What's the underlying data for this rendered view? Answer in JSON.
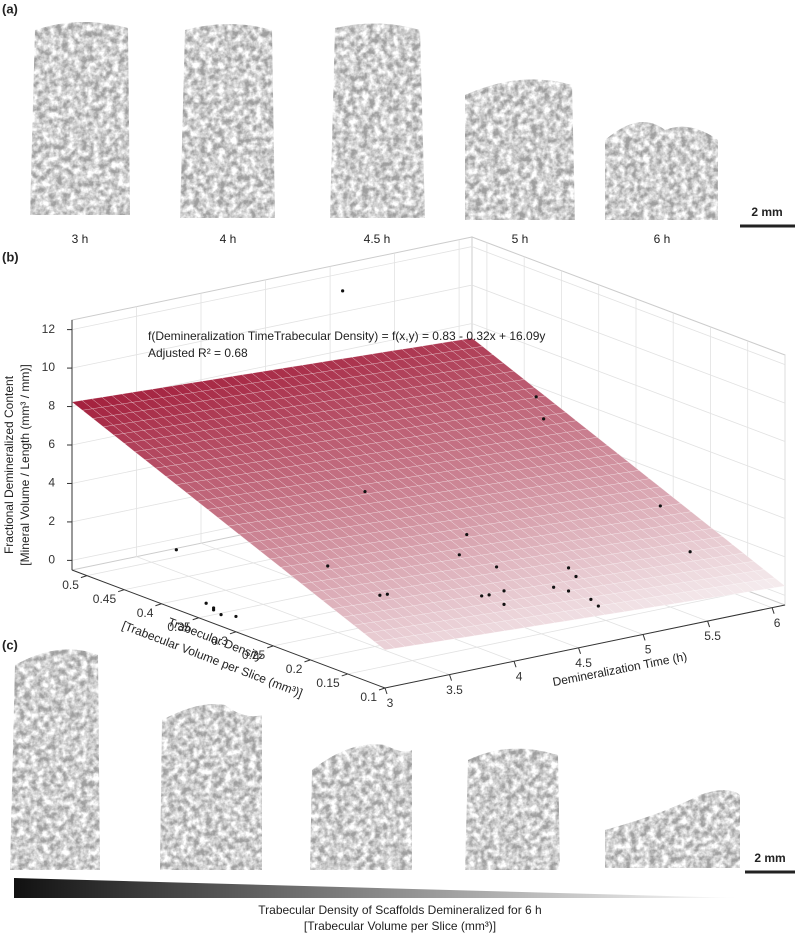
{
  "panel_a": {
    "label": "(a)",
    "captions": [
      "3 h",
      "4 h",
      "4.5 h",
      "5 h",
      "6 h"
    ],
    "scale_bar": "2 mm"
  },
  "chart_data": {
    "type": "surface3d",
    "label": "(b)",
    "annotation": [
      "f(Demineralization TimeTrabecular Density) = f(x,y) = 0.83 - 0.32x + 16.09y",
      "Adjusted R² = 0.68"
    ],
    "x_label": "Demineralization Time (h)",
    "y_label": [
      "Trabecular Density",
      "[Trabecular Volume per Slice (mm³)]"
    ],
    "z_label": [
      "Fractional Demineralized Content",
      "[Mineral Volume / Length (mm³ / mm)]"
    ],
    "xlim": [
      3,
      6.1
    ],
    "xticks": [
      3,
      3.5,
      4,
      4.5,
      5,
      5.5,
      6
    ],
    "ylim": [
      0.1,
      0.52
    ],
    "yticks": [
      0.1,
      0.15,
      0.2,
      0.25,
      0.3,
      0.35,
      0.4,
      0.45,
      0.5
    ],
    "zlim": [
      -0.5,
      12.5
    ],
    "zticks": [
      0,
      2,
      4,
      6,
      8,
      10,
      12
    ],
    "grid": true,
    "fit": {
      "intercept": 0.83,
      "x_coef": -0.32,
      "y_coef": 16.09
    },
    "surface_colors": [
      "#f6eef0",
      "#a31f3c"
    ],
    "point_color": "#111111",
    "points": {
      "x": [
        3.0,
        3.0,
        3.0,
        3.0,
        3.0,
        3.0,
        4.0,
        4.0,
        4.0,
        4.0,
        4.0,
        4.5,
        4.5,
        4.5,
        4.5,
        4.5,
        4.5,
        4.5,
        5.0,
        5.0,
        5.0,
        5.0,
        5.0,
        5.0,
        5.5,
        5.5,
        6.0,
        6.0
      ],
      "y": [
        0.38,
        0.34,
        0.33,
        0.32,
        0.3,
        0.33,
        0.33,
        0.3,
        0.27,
        0.28,
        0.35,
        0.26,
        0.22,
        0.25,
        0.2,
        0.23,
        0.2,
        0.21,
        0.22,
        0.2,
        0.17,
        0.16,
        0.19,
        0.2,
        0.33,
        0.32,
        0.25,
        0.21
      ],
      "z": [
        2.6,
        0.4,
        0.2,
        0.1,
        0.3,
        0.3,
        15.4,
        5.4,
        0.5,
        0.3,
        0.8,
        2.0,
        0.5,
        3.2,
        0.3,
        0.3,
        1.0,
        2.1,
        0.2,
        0.3,
        0.3,
        0.1,
        1.2,
        1.5,
        7.8,
        6.8,
        2.6,
        0.8
      ]
    }
  },
  "panel_c": {
    "label": "(c)",
    "scale_bar": "2 mm",
    "axis_title": [
      "Trabecular Density of Scaffolds Demineralized for 6 h",
      "[Trabecular Volume per Slice (mm³)]"
    ]
  }
}
